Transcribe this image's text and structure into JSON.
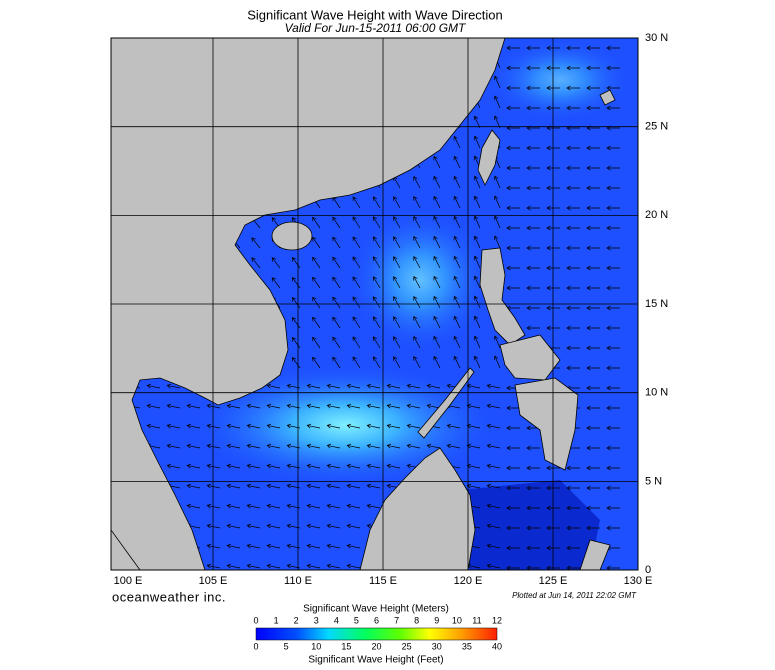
{
  "title": "Significant Wave Height with Wave Direction",
  "subtitle": "Valid For Jun-15-2011 06:00 GMT",
  "map": {
    "lon_labels": [
      "100 E",
      "105 E",
      "110 E",
      "115 E",
      "120 E",
      "125 E",
      "130 E"
    ],
    "lat_labels": [
      "30 N",
      "25 N",
      "20 N",
      "15 N",
      "10 N",
      "5 N",
      "0"
    ]
  },
  "credit": "oceanweather inc.",
  "plotted": "Plotted at Jun 14, 2011 22:02 GMT",
  "legend": {
    "meters_title": "Significant Wave Height (Meters)",
    "meters_ticks": [
      0,
      1,
      2,
      3,
      4,
      5,
      6,
      7,
      8,
      9,
      10,
      11,
      12
    ],
    "feet_ticks": [
      0,
      5,
      10,
      15,
      20,
      25,
      30,
      35,
      40
    ],
    "feet_title": "Significant Wave Height (Feet)"
  }
}
